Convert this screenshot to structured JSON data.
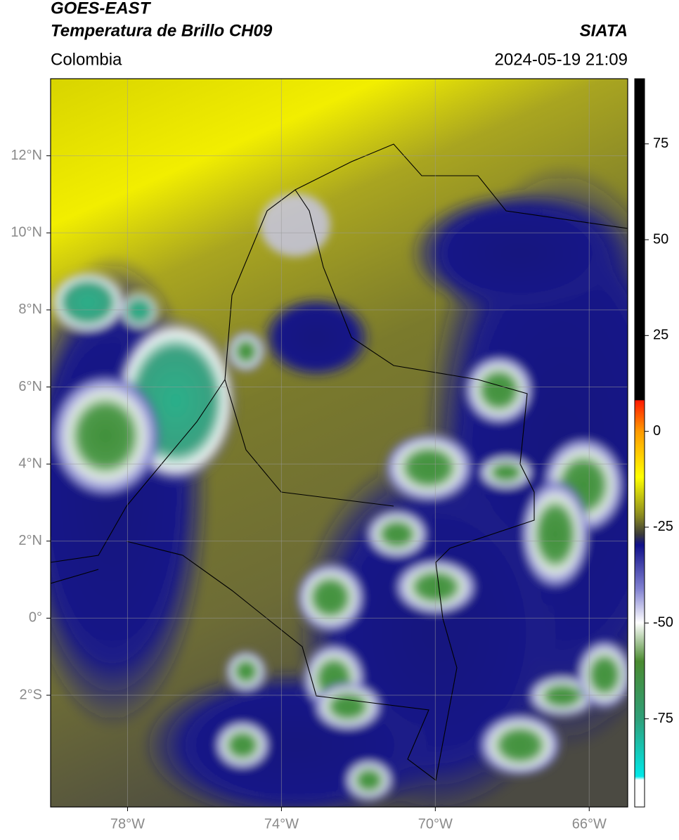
{
  "header": {
    "title": "GOES-EAST",
    "subtitle": "Temperatura de Brillo CH09",
    "region": "Colombia",
    "source": "SIATA",
    "timestamp": "2024-05-19 21:09"
  },
  "map": {
    "xlim": [
      -80,
      -65
    ],
    "ylim": [
      -4.9,
      14
    ],
    "grid": true,
    "xticks": [
      {
        "value": -78,
        "label": "78°W"
      },
      {
        "value": -74,
        "label": "74°W"
      },
      {
        "value": -70,
        "label": "70°W"
      },
      {
        "value": -66,
        "label": "66°W"
      }
    ],
    "yticks": [
      {
        "value": 12,
        "label": "12°N"
      },
      {
        "value": 10,
        "label": "10°N"
      },
      {
        "value": 8,
        "label": "8°N"
      },
      {
        "value": 6,
        "label": "6°N"
      },
      {
        "value": 4,
        "label": "4°N"
      },
      {
        "value": 2,
        "label": "2°N"
      },
      {
        "value": 0,
        "label": "0°"
      },
      {
        "value": -2,
        "label": "2°S"
      }
    ]
  },
  "colorbar": {
    "lim": [
      -98,
      92
    ],
    "ticks": [
      75,
      50,
      25,
      0,
      -25,
      -50,
      -75
    ]
  }
}
